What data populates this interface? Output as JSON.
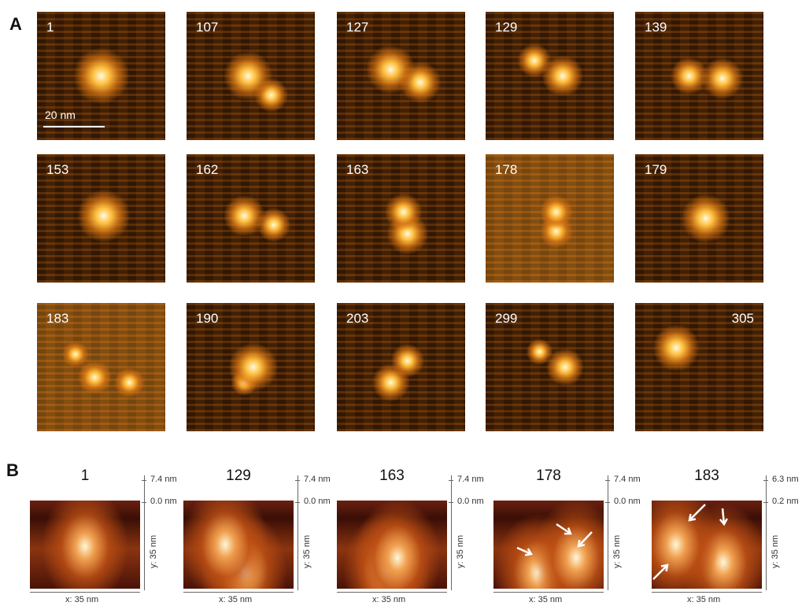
{
  "panel_a": {
    "label": "A",
    "scale_bar": "20 nm",
    "frames": [
      "1",
      "107",
      "127",
      "129",
      "139",
      "153",
      "162",
      "163",
      "178",
      "179",
      "183",
      "190",
      "203",
      "299",
      "305"
    ]
  },
  "panel_b": {
    "label": "B",
    "frames": [
      {
        "frame": "1",
        "z_top": "7.4 nm",
        "z_bottom": "0.0 nm",
        "y_axis": "y: 35 nm",
        "x_axis": "x: 35 nm"
      },
      {
        "frame": "129",
        "z_top": "7.4 nm",
        "z_bottom": "0.0 nm",
        "y_axis": "y: 35 nm",
        "x_axis": "x: 35 nm"
      },
      {
        "frame": "163",
        "z_top": "7.4 nm",
        "z_bottom": "0.0 nm",
        "y_axis": "y: 35 nm",
        "x_axis": "x: 35 nm"
      },
      {
        "frame": "178",
        "z_top": "7.4 nm",
        "z_bottom": "0.0 nm",
        "y_axis": "y: 35 nm",
        "x_axis": "x: 35 nm"
      },
      {
        "frame": "183",
        "z_top": "6.3 nm",
        "z_bottom": "0.2 nm",
        "y_axis": "y: 35 nm",
        "x_axis": "x: 35 nm"
      }
    ]
  }
}
